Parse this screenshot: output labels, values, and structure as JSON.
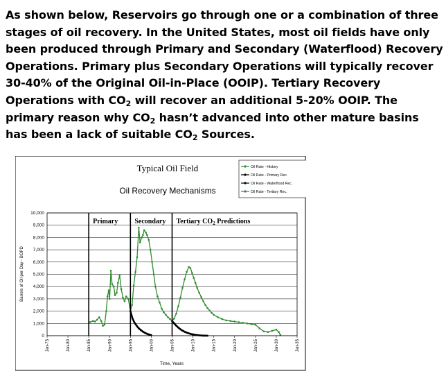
{
  "paragraph": {
    "s1": "As shown below, Reservoirs go through one or a combination of three stages of oil recovery. In the United States, most oil fields have only been produced through Primary and Secondary (Waterflood) Recovery Operations. Primary plus Secondary Operations will typically recover 30-40% of the Original Oil-in-Place (OOIP).  Tertiary Recovery Operations with CO",
    "sub1": "2",
    "s2": " will recover an additional 5-20% OOIP. The primary reason why CO",
    "sub2": "2",
    "s3": " hasn’t advanced into other mature basins has been a lack of suitable CO",
    "sub3": "2",
    "s4": " Sources."
  },
  "chart_data": {
    "type": "line",
    "title": "Typical Oil Field",
    "subtitle": "Oil Recovery Mechanisms",
    "xlabel": "Time, Years",
    "ylabel": "Barrels of Oil per Day - BOPD",
    "ylim": [
      0,
      10000
    ],
    "xlim": [
      1975,
      2035
    ],
    "x_tick_labels": [
      "Jan-75",
      "Jan-80",
      "Jan-85",
      "Jan-90",
      "Jan-95",
      "Jan-00",
      "Jan-05",
      "Jan-10",
      "Jan-15",
      "Jan-20",
      "Jan-25",
      "Jan-30",
      "Jan-35"
    ],
    "y_tick_labels": [
      "0",
      "1,000",
      "2,000",
      "3,000",
      "4,000",
      "5,000",
      "6,000",
      "7,000",
      "8,000",
      "9,000",
      "10,000"
    ],
    "grid": true,
    "legend_position": "top-right",
    "phases": [
      {
        "label": "Primary",
        "start": 1985
      },
      {
        "label": "Secondary",
        "start": 1995
      },
      {
        "label": "Tertiary CO2 Predictions",
        "start": 2005
      }
    ],
    "series": [
      {
        "name": "Oil Rate - History",
        "color": "#2e8b2e",
        "x": [
          1985.3,
          1986,
          1986.5,
          1987,
          1987.5,
          1988,
          1988.4,
          1988.8,
          1989.2,
          1989.5,
          1989.8,
          1990,
          1990.3,
          1990.6,
          1991,
          1991.3,
          1991.7,
          1992,
          1992.4,
          1992.8,
          1993.2,
          1993.6,
          1994,
          1994.5,
          1995,
          1995.4,
          1995.8,
          1996.2,
          1996.6,
          1997,
          1997.3,
          1997.7,
          1998,
          1998.3,
          1998.7,
          1999,
          1999.4,
          1999.8,
          2000.2,
          2000.6,
          2001,
          2001.5,
          2002,
          2002.5,
          2003,
          2003.5,
          2004,
          2004.5,
          2005
        ],
        "y": [
          1100,
          1200,
          1150,
          1300,
          1500,
          1200,
          800,
          900,
          2000,
          3200,
          3700,
          3000,
          5300,
          4200,
          4000,
          3300,
          3500,
          4300,
          4900,
          3800,
          3100,
          2800,
          3200,
          3000,
          2000,
          2500,
          4100,
          5200,
          6400,
          8800,
          7600,
          8000,
          8200,
          8600,
          8400,
          8200,
          7800,
          7000,
          6000,
          5000,
          4000,
          3200,
          2700,
          2200,
          1900,
          1700,
          1500,
          1350,
          1200
        ]
      },
      {
        "name": "Oil Rate - Primary Rec.",
        "color": "#000000",
        "x": [
          1995,
          1995.5,
          1996,
          1996.5,
          1997,
          1997.5,
          1998,
          1998.5,
          1999,
          1999.5,
          2000
        ],
        "y": [
          2000,
          1400,
          1050,
          800,
          600,
          450,
          330,
          230,
          150,
          90,
          40
        ]
      },
      {
        "name": "Oil Rate - Waterflood Rec.",
        "color": "#000000",
        "x": [
          2005,
          2005.5,
          2006,
          2006.5,
          2007,
          2007.5,
          2008,
          2008.5,
          2009,
          2009.5,
          2010,
          2010.5,
          2011,
          2011.5,
          2012,
          2012.5,
          2013,
          2013.5
        ],
        "y": [
          1200,
          1000,
          820,
          660,
          520,
          410,
          320,
          250,
          190,
          140,
          100,
          70,
          45,
          28,
          15,
          8,
          3,
          0
        ]
      },
      {
        "name": "Oil Rate - Tertiary Rec.",
        "color": "#2e8b2e",
        "x": [
          2005,
          2005.5,
          2006,
          2006.5,
          2007,
          2007.5,
          2008,
          2008.5,
          2009,
          2009.4,
          2009.8,
          2010.2,
          2010.6,
          2011,
          2011.5,
          2012,
          2012.5,
          2013,
          2013.5,
          2014,
          2014.5,
          2015,
          2016,
          2017,
          2018,
          2019,
          2020,
          2021,
          2022,
          2023,
          2024,
          2025,
          2026,
          2027,
          2028,
          2029,
          2030,
          2030.6,
          2031
        ],
        "y": [
          1200,
          1400,
          1800,
          2400,
          3100,
          3900,
          4600,
          5200,
          5600,
          5500,
          5100,
          4700,
          4300,
          3900,
          3500,
          3150,
          2800,
          2500,
          2250,
          2050,
          1850,
          1700,
          1500,
          1350,
          1250,
          1200,
          1150,
          1100,
          1050,
          1000,
          950,
          900,
          600,
          350,
          300,
          400,
          500,
          300,
          50
        ]
      }
    ]
  }
}
